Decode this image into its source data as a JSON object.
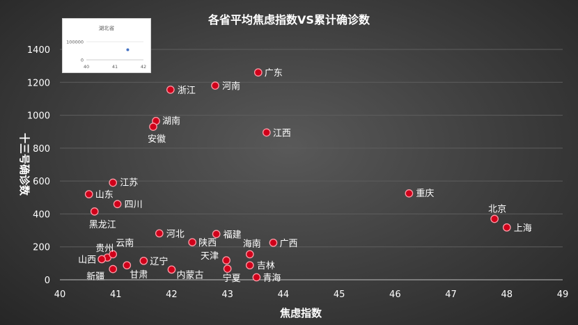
{
  "chart_data": [
    {
      "type": "scatter",
      "title": "各省平均焦虑指数VS累计确诊数",
      "xlabel": "焦虑指数",
      "ylabel": "十三号确诊数",
      "xlim": [
        40,
        49
      ],
      "ylim": [
        0,
        1400
      ],
      "xticks": [
        40,
        41,
        42,
        43,
        44,
        45,
        46,
        47,
        48,
        49
      ],
      "yticks": [
        0,
        200,
        400,
        600,
        800,
        1000,
        1200,
        1400
      ],
      "grid": true,
      "point_color": "#d0001a",
      "points": [
        {
          "label": "广东",
          "x": 43.55,
          "y": 1260
        },
        {
          "label": "浙江",
          "x": 41.98,
          "y": 1155
        },
        {
          "label": "河南",
          "x": 42.78,
          "y": 1180
        },
        {
          "label": "湖南",
          "x": 41.72,
          "y": 965
        },
        {
          "label": "安徽",
          "x": 41.67,
          "y": 930
        },
        {
          "label": "江西",
          "x": 43.7,
          "y": 895
        },
        {
          "label": "江苏",
          "x": 40.95,
          "y": 590
        },
        {
          "label": "山东",
          "x": 40.52,
          "y": 520
        },
        {
          "label": "四川",
          "x": 41.03,
          "y": 460
        },
        {
          "label": "黑龙江",
          "x": 40.62,
          "y": 415
        },
        {
          "label": "重庆",
          "x": 46.25,
          "y": 525
        },
        {
          "label": "北京",
          "x": 47.78,
          "y": 370
        },
        {
          "label": "上海",
          "x": 48.0,
          "y": 318
        },
        {
          "label": "河北",
          "x": 41.78,
          "y": 282
        },
        {
          "label": "福建",
          "x": 42.8,
          "y": 278
        },
        {
          "label": "陕西",
          "x": 42.37,
          "y": 228
        },
        {
          "label": "广西",
          "x": 43.82,
          "y": 225
        },
        {
          "label": "海南",
          "x": 43.4,
          "y": 155
        },
        {
          "label": "贵州",
          "x": 40.85,
          "y": 135
        },
        {
          "label": "云南",
          "x": 40.95,
          "y": 155
        },
        {
          "label": "山西",
          "x": 40.75,
          "y": 125
        },
        {
          "label": "新疆",
          "x": 40.95,
          "y": 65
        },
        {
          "label": "甘肃",
          "x": 41.2,
          "y": 88
        },
        {
          "label": "辽宁",
          "x": 41.5,
          "y": 115
        },
        {
          "label": "内蒙古",
          "x": 42.0,
          "y": 62
        },
        {
          "label": "天津",
          "x": 42.98,
          "y": 118
        },
        {
          "label": "宁夏",
          "x": 43.0,
          "y": 67
        },
        {
          "label": "吉林",
          "x": 43.4,
          "y": 88
        },
        {
          "label": "青海",
          "x": 43.52,
          "y": 15
        }
      ]
    },
    {
      "type": "scatter",
      "title": "湖北省",
      "xlim": [
        40,
        42
      ],
      "ylim": [
        0,
        100000
      ],
      "xticks": [
        40,
        41,
        42
      ],
      "yticks": [
        0,
        100000
      ],
      "point_color": "#4472c4",
      "points": [
        {
          "x": 41.45,
          "y": 48000
        }
      ]
    }
  ]
}
